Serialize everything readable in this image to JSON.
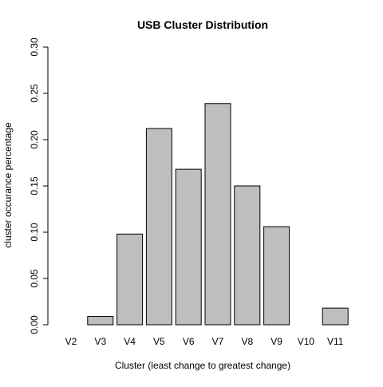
{
  "chart_data": {
    "type": "bar",
    "title": "USB Cluster Distribution",
    "xlabel": "Cluster (least change to greatest change)",
    "ylabel": "cluster occurance percentage",
    "categories": [
      "V2",
      "V3",
      "V4",
      "V5",
      "V6",
      "V7",
      "V8",
      "V9",
      "V10",
      "V11"
    ],
    "values": [
      0.0,
      0.009,
      0.098,
      0.212,
      0.168,
      0.239,
      0.15,
      0.106,
      0.0,
      0.018
    ],
    "ylim": [
      0,
      0.3
    ],
    "yticks": [
      "0.00",
      "0.05",
      "0.10",
      "0.15",
      "0.20",
      "0.25",
      "0.30"
    ],
    "grid": false,
    "colors": {
      "bar_fill": "#bebebe",
      "bar_stroke": "#000000",
      "axis": "#000000",
      "background": "#ffffff"
    }
  }
}
